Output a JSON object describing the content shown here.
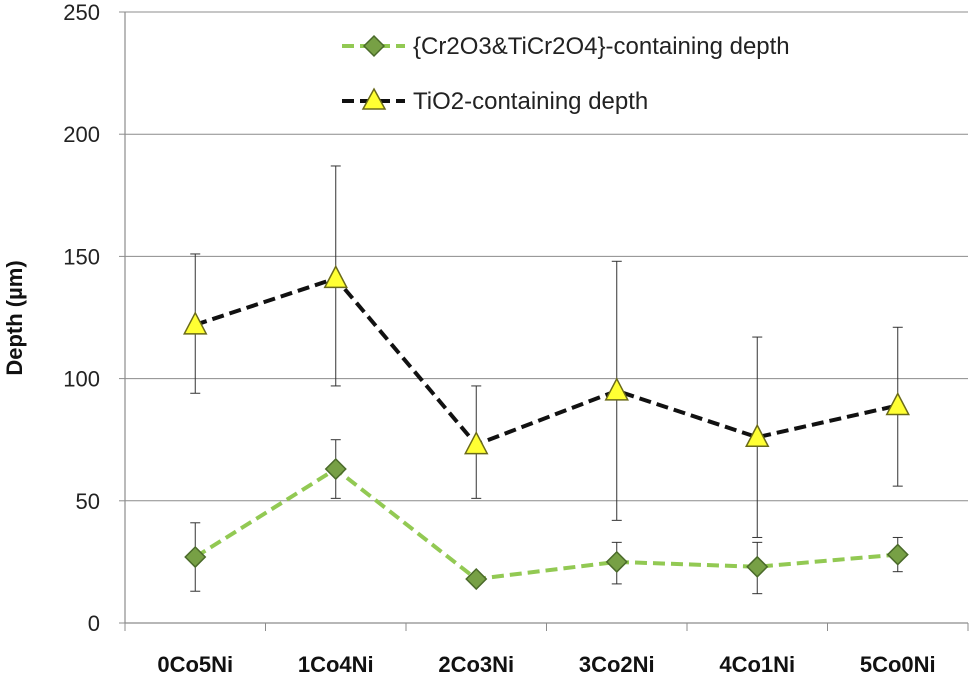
{
  "chart_data": {
    "type": "line",
    "categories": [
      "0Co5Ni",
      "1Co4Ni",
      "2Co3Ni",
      "3Co2Ni",
      "4Co1Ni",
      "5Co0Ni"
    ],
    "ylabel": "Depth (µm)",
    "xlabel": "",
    "ylim": [
      0,
      250
    ],
    "yticks": [
      0,
      50,
      100,
      150,
      200,
      250
    ],
    "grid": true,
    "legend_position": "top-right",
    "series": [
      {
        "name": "{Cr2O3&TiCr2O4}-containing depth",
        "values": [
          27,
          63,
          18,
          25,
          23,
          28
        ],
        "err_low": [
          13,
          51,
          18,
          16,
          12,
          21
        ],
        "err_high": [
          41,
          75,
          18,
          33,
          33,
          35
        ],
        "line_color": "#92c953",
        "marker": "diamond",
        "marker_fill": "#77a045",
        "marker_stroke": "#4a6a2a"
      },
      {
        "name": "TiO2-containing depth",
        "values": [
          122,
          141,
          73,
          95,
          76,
          89
        ],
        "err_low": [
          94,
          97,
          51,
          42,
          35,
          56
        ],
        "err_high": [
          151,
          187,
          97,
          148,
          117,
          121
        ],
        "line_color": "#111111",
        "marker": "triangle",
        "marker_fill": "#ffff33",
        "marker_stroke": "#6a6a1a"
      }
    ]
  }
}
